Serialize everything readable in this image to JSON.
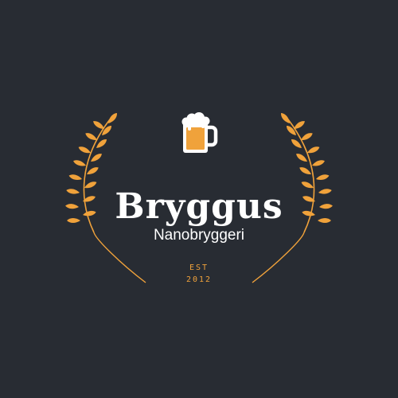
{
  "brand": {
    "name": "Bryggus",
    "tagline": "Nanobryggeri",
    "est_label": "EST",
    "year": "2012"
  },
  "colors": {
    "background": "#282c33",
    "accent": "#f0a23b",
    "text": "#ffffff"
  },
  "icons": [
    "beer-mug-icon",
    "wheat-left-icon",
    "wheat-right-icon"
  ]
}
